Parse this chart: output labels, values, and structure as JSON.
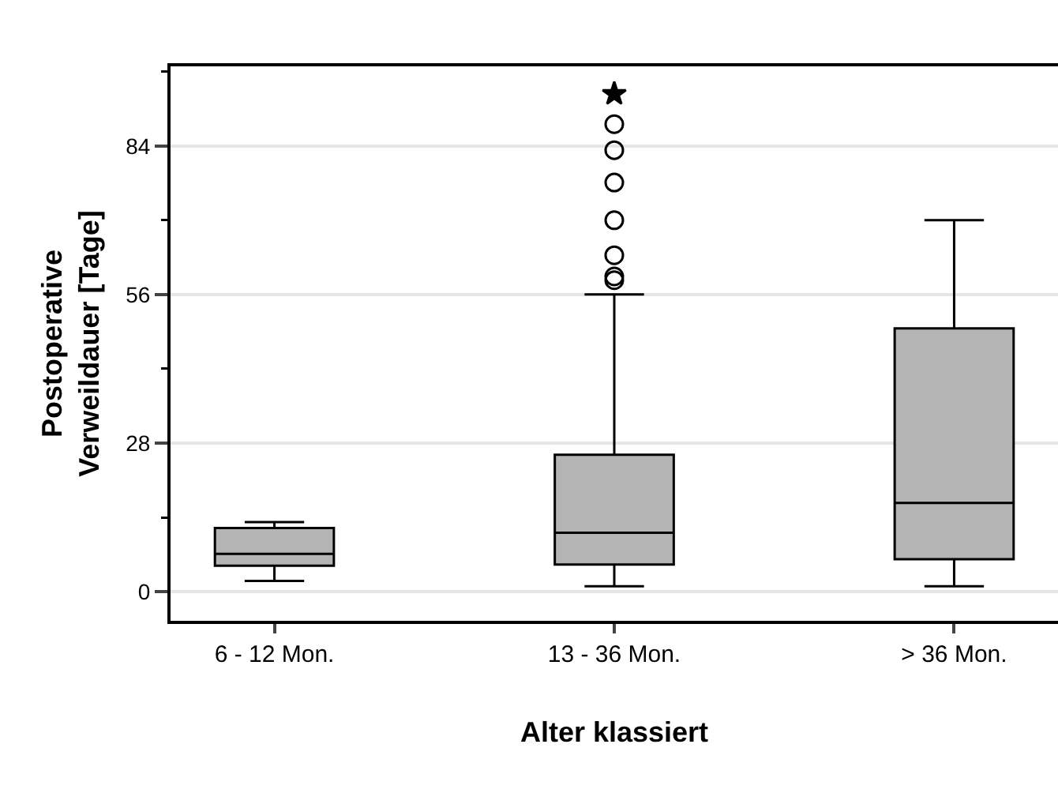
{
  "chart_data": {
    "type": "box",
    "xlabel": "Alter klassiert",
    "ylabel": "Postoperative Verweildauer [Tage]",
    "categories": [
      "6 - 12 Mon.",
      "13 - 36 Mon.",
      "> 36 Mon."
    ],
    "color": "#b4b4b4",
    "boxes": [
      {
        "low": 2,
        "q1": 4.9,
        "median": 7.1,
        "q3": 12,
        "high": 13.1
      },
      {
        "low": 1,
        "q1": 5.1,
        "median": 11.1,
        "q3": 25.8,
        "high": 56,
        "outliers": [
          58.7,
          59.4,
          63.4,
          70,
          77.1,
          83.2,
          88.1
        ]
      },
      {
        "low": 1,
        "q1": 6.1,
        "median": 16.7,
        "q3": 49.6,
        "high": 70
      }
    ],
    "series": [
      {
        "type": "scatter",
        "x": [
          "13 - 36 Mon."
        ],
        "values": [
          93.8
        ],
        "marker": "star",
        "color": "#000000"
      }
    ],
    "ylim": [
      -5.5,
      99
    ],
    "yticks": [
      0,
      {
        "value": 14,
        "label": null
      },
      28,
      {
        "value": 42,
        "label": null
      },
      56,
      {
        "value": 70,
        "label": null
      },
      84,
      {
        "value": 98,
        "label": null
      }
    ],
    "grid": "y"
  }
}
